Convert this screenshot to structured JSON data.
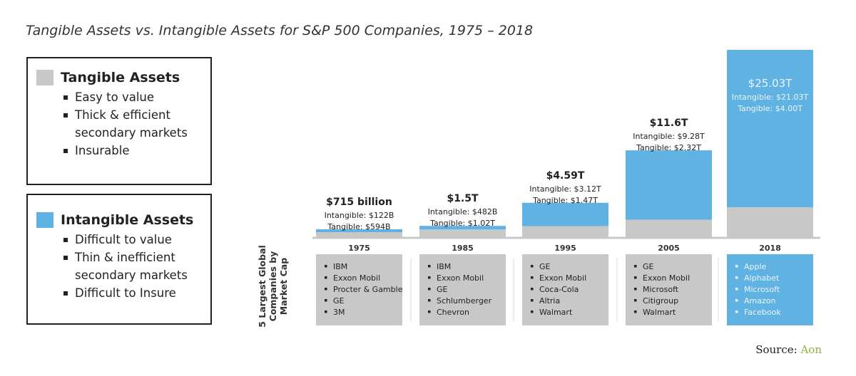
{
  "chart_data": {
    "type": "bar",
    "stacked": true,
    "title": "Tangible Assets vs. Intangible Assets for S&P 500 Companies, 1975 – 2018",
    "categories": [
      "1975",
      "1985",
      "1995",
      "2005",
      "2018"
    ],
    "series": [
      {
        "name": "Tangible Assets",
        "color": "#c8c8c8",
        "values": [
          0.594,
          1.02,
          1.47,
          2.32,
          4.0
        ]
      },
      {
        "name": "Intangible Assets",
        "color": "#5fb2e2",
        "values": [
          0.122,
          0.482,
          3.12,
          9.28,
          21.03
        ]
      }
    ],
    "labels": [
      {
        "total": "$715 billion",
        "intangible": "Intangible: $122B",
        "tangible": "Tangible: $594B"
      },
      {
        "total": "$1.5T",
        "intangible": "Intangible: $482B",
        "tangible": "Tangible: $1.02T"
      },
      {
        "total": "$4.59T",
        "intangible": "Intangible: $3.12T",
        "tangible": "Tangible: $1.47T"
      },
      {
        "total": "$11.6T",
        "intangible": "Intangible: $9.28T",
        "tangible": "Tangible: $2.32T"
      },
      {
        "total": "$25.03T",
        "intangible": "Intangible: $21.03T",
        "tangible": "Tangible: $4.00T"
      }
    ],
    "unit": "trillion USD",
    "companies_label": "5 Largest Global Companies by Market Cap",
    "companies": [
      [
        "IBM",
        "Exxon Mobil",
        "Procter & Gamble",
        "GE",
        "3M"
      ],
      [
        "IBM",
        "Exxon Mobil",
        "GE",
        "Schlumberger",
        "Chevron"
      ],
      [
        "GE",
        "Exxon Mobil",
        "Coca-Cola",
        "Altria",
        "Walmart"
      ],
      [
        "GE",
        "Exxon Mobil",
        "Microsoft",
        "Citigroup",
        "Walmart"
      ],
      [
        "Apple",
        "Alphabet",
        "Microsoft",
        "Amazon",
        "Facebook"
      ]
    ],
    "grid": false
  },
  "legend": {
    "tangible": {
      "title": "Tangible Assets",
      "color": "#c8c8c8",
      "items": [
        "Easy to value",
        "Thick & efficient secondary markets",
        "Insurable"
      ]
    },
    "intangible": {
      "title": "Intangible Assets",
      "color": "#5fb2e2",
      "items": [
        "Difficult to value",
        "Thin & inefficient secondary markets",
        "Difficult to Insure"
      ]
    }
  },
  "source": {
    "label": "Source:",
    "name": "Aon"
  }
}
